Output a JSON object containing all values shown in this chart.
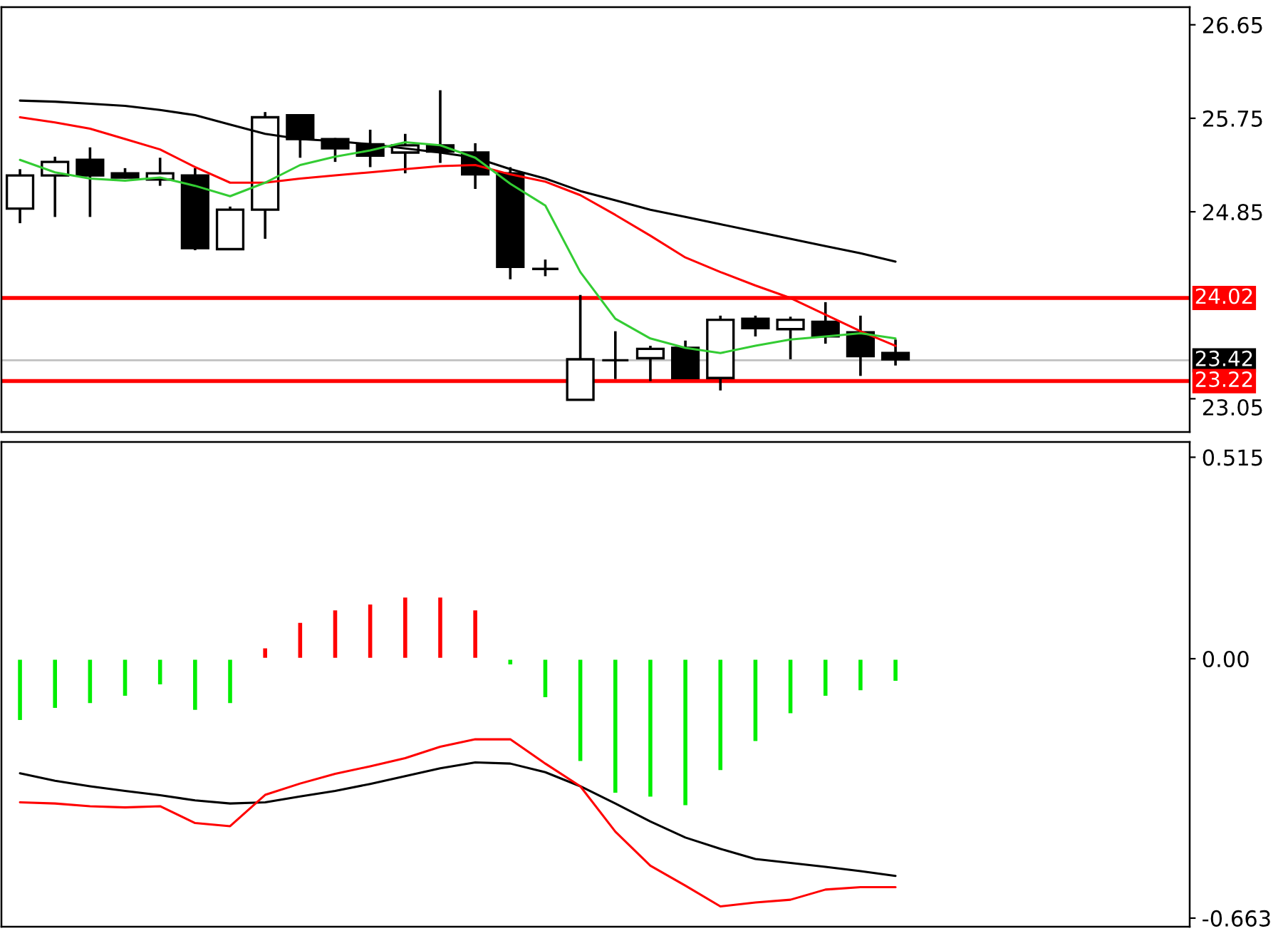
{
  "chart_data": [
    {
      "type": "candlestick",
      "categories": [
        null,
        null,
        null,
        null,
        null,
        null,
        null,
        null,
        null,
        null,
        null,
        null,
        null,
        null,
        null,
        null,
        null,
        null,
        null,
        null,
        null,
        null,
        null,
        null,
        null,
        null
      ],
      "ohlc": [
        [
          24.88,
          25.26,
          24.74,
          25.2
        ],
        [
          25.2,
          25.38,
          24.8,
          25.33
        ],
        [
          25.35,
          25.47,
          24.8,
          25.2
        ],
        [
          25.22,
          25.27,
          25.17,
          25.18
        ],
        [
          25.16,
          25.37,
          25.1,
          25.22
        ],
        [
          25.2,
          25.27,
          24.48,
          24.5
        ],
        [
          24.49,
          24.9,
          24.48,
          24.87
        ],
        [
          24.87,
          25.81,
          24.59,
          25.76
        ],
        [
          25.78,
          25.78,
          25.37,
          25.55
        ],
        [
          25.55,
          25.56,
          25.33,
          25.46
        ],
        [
          25.5,
          25.64,
          25.28,
          25.39
        ],
        [
          25.42,
          25.6,
          25.22,
          25.49
        ],
        [
          25.49,
          26.02,
          25.32,
          25.43
        ],
        [
          25.42,
          25.51,
          25.07,
          25.21
        ],
        [
          25.22,
          25.28,
          24.2,
          24.32
        ],
        [
          24.3,
          24.39,
          24.23,
          24.3
        ],
        [
          23.04,
          24.05,
          23.04,
          23.43
        ],
        [
          23.42,
          23.7,
          23.24,
          23.42
        ],
        [
          23.44,
          23.56,
          23.22,
          23.53
        ],
        [
          23.54,
          23.61,
          23.24,
          23.25
        ],
        [
          23.25,
          23.85,
          23.13,
          23.81
        ],
        [
          23.82,
          23.85,
          23.65,
          23.73
        ],
        [
          23.72,
          23.84,
          23.43,
          23.81
        ],
        [
          23.79,
          23.98,
          23.58,
          23.65
        ],
        [
          23.69,
          23.85,
          23.27,
          23.46
        ],
        [
          23.49,
          23.62,
          23.37,
          23.43
        ]
      ],
      "series": [
        {
          "type": "line",
          "color": "#000000",
          "values": [
            25.92,
            25.91,
            25.89,
            25.87,
            25.83,
            25.78,
            25.69,
            25.6,
            25.55,
            25.53,
            25.5,
            25.46,
            25.42,
            25.37,
            25.26,
            25.17,
            25.05,
            24.96,
            24.87,
            24.8,
            24.73,
            24.66,
            24.59,
            24.52,
            24.45,
            24.37
          ]
        },
        {
          "type": "line",
          "color": "#ff0000",
          "values": [
            25.76,
            25.71,
            25.65,
            25.55,
            25.45,
            25.28,
            25.13,
            25.13,
            25.17,
            25.2,
            25.23,
            25.26,
            25.29,
            25.3,
            25.21,
            25.14,
            25.01,
            24.82,
            24.62,
            24.41,
            24.27,
            24.14,
            24.02,
            23.86,
            23.7,
            23.56
          ]
        },
        {
          "type": "line",
          "color": "#33cc33",
          "values": [
            25.35,
            25.23,
            25.17,
            25.15,
            25.18,
            25.1,
            25.0,
            25.13,
            25.3,
            25.38,
            25.44,
            25.52,
            25.49,
            25.37,
            25.12,
            24.91,
            24.27,
            23.82,
            23.63,
            23.54,
            23.49,
            23.56,
            23.62,
            23.65,
            23.68,
            23.63
          ]
        }
      ],
      "ylim": [
        22.73,
        26.82
      ],
      "yticks": [
        23.05,
        24.85,
        25.75,
        26.65
      ],
      "ref_lines": [
        {
          "axis": "y",
          "value": 24.02,
          "label": "24.02",
          "color": "#ff0000"
        },
        {
          "axis": "y",
          "value": 23.42,
          "label": "23.42",
          "color": "#c0c0c0"
        },
        {
          "axis": "y",
          "value": 23.22,
          "label": "23.22",
          "color": "#ff0000"
        }
      ],
      "tick_labels": "y",
      "grid": false
    },
    {
      "type": "bar",
      "categories": [
        null,
        null,
        null,
        null,
        null,
        null,
        null,
        null,
        null,
        null,
        null,
        null,
        null,
        null,
        null,
        null,
        null,
        null,
        null,
        null,
        null,
        null,
        null,
        null,
        null,
        null
      ],
      "series": [
        {
          "type": "bar",
          "colors": [
            "#00ee00",
            "#00ee00",
            "#00ee00",
            "#00ee00",
            "#00ee00",
            "#00ee00",
            "#00ee00",
            "#ff0000",
            "#ff0000",
            "#ff0000",
            "#ff0000",
            "#ff0000",
            "#ff0000",
            "#ff0000",
            "#00ee00",
            "#00ee00",
            "#00ee00",
            "#00ee00",
            "#00ee00",
            "#00ee00",
            "#00ee00",
            "#00ee00",
            "#00ee00",
            "#00ee00",
            "#00ee00",
            "#00ee00"
          ],
          "values": [
            -0.159,
            -0.128,
            -0.116,
            -0.097,
            -0.068,
            -0.133,
            -0.116,
            0.029,
            0.094,
            0.126,
            0.141,
            0.159,
            0.159,
            0.126,
            -0.017,
            -0.101,
            -0.264,
            -0.345,
            -0.355,
            -0.377,
            -0.287,
            -0.213,
            -0.142,
            -0.097,
            -0.083,
            -0.059
          ]
        },
        {
          "type": "line",
          "color": "#000000",
          "values": [
            -0.293,
            -0.312,
            -0.326,
            -0.338,
            -0.349,
            -0.362,
            -0.37,
            -0.367,
            -0.352,
            -0.338,
            -0.32,
            -0.3,
            -0.28,
            -0.265,
            -0.268,
            -0.29,
            -0.326,
            -0.37,
            -0.416,
            -0.457,
            -0.486,
            -0.512,
            -0.522,
            -0.532,
            -0.543,
            -0.555
          ]
        },
        {
          "type": "line",
          "color": "#ff0000",
          "values": [
            -0.367,
            -0.37,
            -0.377,
            -0.38,
            -0.377,
            -0.42,
            -0.428,
            -0.348,
            -0.319,
            -0.294,
            -0.275,
            -0.254,
            -0.225,
            -0.206,
            -0.206,
            -0.268,
            -0.326,
            -0.442,
            -0.529,
            -0.58,
            -0.633,
            -0.623,
            -0.616,
            -0.59,
            -0.584,
            -0.584
          ]
        }
      ],
      "ylim": [
        -0.685,
        0.554
      ],
      "yticks": [
        0.515,
        {
          "value": 0,
          "label": "0.00"
        },
        -0.663
      ],
      "tick_labels": "y",
      "grid": false
    }
  ]
}
